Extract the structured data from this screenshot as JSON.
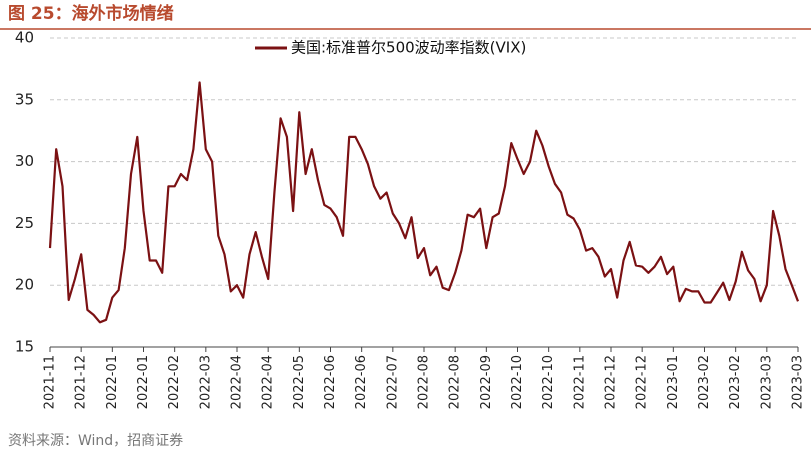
{
  "chart_data": {
    "type": "line",
    "title": "图 25：海外市场情绪",
    "source": "资料来源：Wind，招商证券",
    "categories": [
      "2021-11",
      null,
      null,
      null,
      null,
      "2021-12",
      null,
      null,
      null,
      null,
      "2022-01",
      null,
      null,
      null,
      null,
      "2022-01",
      null,
      null,
      null,
      null,
      "2022-02",
      null,
      null,
      null,
      null,
      "2022-03",
      null,
      null,
      null,
      null,
      "2022-04",
      null,
      null,
      null,
      null,
      "2022-04",
      null,
      null,
      null,
      null,
      "2022-05",
      null,
      null,
      null,
      null,
      "2022-06",
      null,
      null,
      null,
      null,
      "2022-06",
      null,
      null,
      null,
      null,
      "2022-07",
      null,
      null,
      null,
      null,
      "2022-08",
      null,
      null,
      null,
      null,
      "2022-08",
      null,
      null,
      null,
      null,
      "2022-09",
      null,
      null,
      null,
      null,
      "2022-10",
      null,
      null,
      null,
      null,
      "2022-10",
      null,
      null,
      null,
      null,
      "2022-11",
      null,
      null,
      null,
      null,
      "2022-12",
      null,
      null,
      null,
      null,
      "2022-12",
      null,
      null,
      null,
      null,
      "2023-01",
      null,
      null,
      null,
      null,
      "2023-02",
      null,
      null,
      null,
      null,
      "2023-02",
      null,
      null,
      null,
      null,
      "2023-03",
      null,
      null,
      null,
      null,
      "2023-03"
    ],
    "series": [
      {
        "name": "美国:标准普尔500波动率指数(VIX)",
        "color": "#7b1113",
        "values": [
          23,
          31,
          28,
          18.8,
          20.5,
          22.5,
          18,
          17.6,
          17,
          17.2,
          19,
          19.6,
          23,
          29,
          32,
          26,
          22,
          22,
          21,
          28,
          28,
          29,
          28.5,
          31,
          36.4,
          31,
          30,
          24,
          22.5,
          19.5,
          20,
          19,
          22.5,
          24.3,
          22.3,
          20.5,
          27.5,
          33.5,
          32,
          26,
          34,
          29,
          31,
          28.5,
          26.5,
          26.2,
          25.5,
          24,
          32,
          32,
          31,
          29.8,
          28,
          27,
          27.5,
          25.8,
          25,
          23.8,
          25.5,
          22.2,
          23,
          20.8,
          21.5,
          19.8,
          19.6,
          21,
          22.8,
          25.7,
          25.5,
          26.2,
          23,
          25.5,
          25.8,
          28,
          31.5,
          30.2,
          29,
          30,
          32.5,
          31.3,
          29.6,
          28.2,
          27.5,
          25.7,
          25.4,
          24.5,
          22.8,
          23,
          22.3,
          20.7,
          21.3,
          19,
          22,
          23.5,
          21.6,
          21.5,
          21,
          21.5,
          22.3,
          20.9,
          21.5,
          18.7,
          19.7,
          19.5,
          19.5,
          18.6,
          18.6,
          19.4,
          20.2,
          18.8,
          20.3,
          22.7,
          21.2,
          20.5,
          18.7,
          20,
          26,
          24,
          21.3,
          20,
          18.7
        ]
      }
    ],
    "ylim": [
      15,
      40
    ],
    "yticks": [
      15,
      20,
      25,
      30,
      35,
      40
    ],
    "grid": true,
    "legend": "top"
  }
}
